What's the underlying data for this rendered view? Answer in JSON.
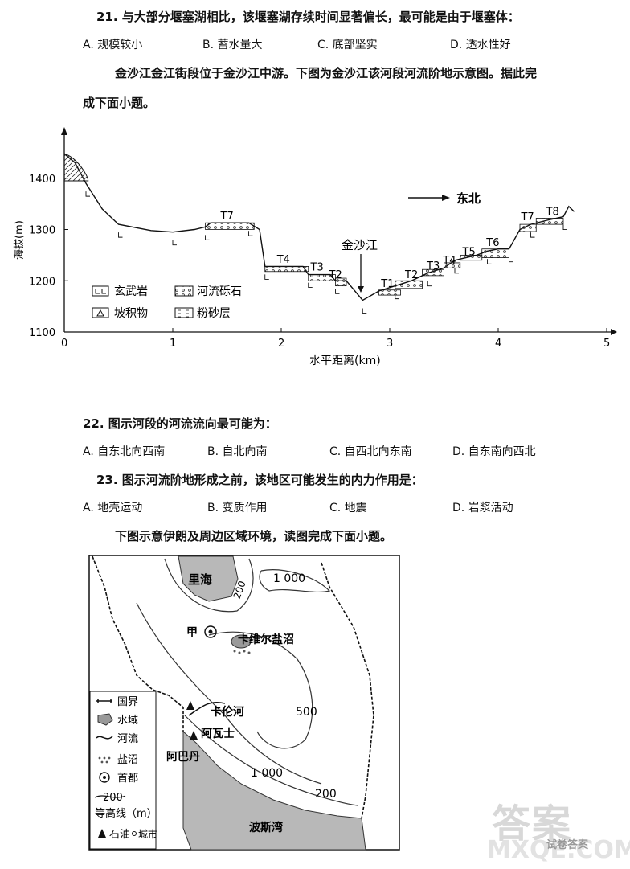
{
  "q21": {
    "title": "21. 与大部分堰塞湖相比，该堰塞湖存续时间显著偏长，最可能是由于堰塞体：",
    "options": [
      "A. 规模较小",
      "B. 蓄水量大",
      "C. 底部坚实",
      "D. 透水性好"
    ]
  },
  "intro1": {
    "line1": "金沙江金江街段位于金沙江中游。下图为金沙江该河段河流阶地示意图。据此完",
    "line2": "成下面小题。"
  },
  "chart_data": {
    "type": "area",
    "title": "",
    "xlabel": "水平距离(km)",
    "ylabel": "海拔(m)",
    "xlim": [
      0,
      5
    ],
    "ylim": [
      1100,
      1500
    ],
    "xticks": [
      "0",
      "1",
      "2",
      "3",
      "4",
      "5"
    ],
    "yticks": [
      "1100",
      "1200",
      "1300",
      "1400"
    ],
    "profile": {
      "x": [
        0,
        0.1,
        0.2,
        0.35,
        0.5,
        0.8,
        1.0,
        1.2,
        1.3,
        1.35,
        1.7,
        1.8,
        1.85,
        2.2,
        2.25,
        2.45,
        2.5,
        2.6,
        2.75,
        2.9,
        3.05,
        3.2,
        3.35,
        3.5,
        3.6,
        3.8,
        3.9,
        4.0,
        4.1,
        4.2,
        4.3,
        4.45,
        4.6,
        4.65,
        4.7
      ],
      "y": [
        1448,
        1430,
        1390,
        1340,
        1310,
        1298,
        1295,
        1300,
        1305,
        1313,
        1313,
        1300,
        1228,
        1228,
        1212,
        1212,
        1200,
        1200,
        1162,
        1180,
        1190,
        1200,
        1215,
        1225,
        1240,
        1250,
        1258,
        1262,
        1262,
        1300,
        1310,
        1318,
        1325,
        1345,
        1335
      ]
    },
    "terraces": [
      "T7",
      "T4",
      "T3",
      "T2",
      "T1",
      "T2",
      "T3",
      "T4",
      "T5",
      "T6",
      "T7",
      "T8"
    ],
    "river_label": "金沙江",
    "direction_label": "东北",
    "legend": [
      "玄武岩",
      "河流砾石",
      "坡积物",
      "粉砂层"
    ]
  },
  "q22": {
    "title": "22. 图示河段的河流流向最可能为：",
    "options": [
      "A. 自东北向西南",
      "B. 自北向南",
      "C. 自西北向东南",
      "D. 自东南向西北"
    ]
  },
  "q23": {
    "title": "23. 图示河流阶地形成之前，该地区可能发生的内力作用是：",
    "options": [
      "A. 地壳运动",
      "B. 变质作用",
      "C. 地震",
      "D. 岩浆活动"
    ]
  },
  "intro2": "下图示意伊朗及周边区域环境，读图完成下面小题。",
  "map": {
    "labels": {
      "caspian": "里海",
      "c1000_top": "1 000",
      "c200_top": "200",
      "capital": "甲",
      "salt": "卡维尔盐沼",
      "karun": "卡伦河",
      "ahvaz": "阿瓦士",
      "abadan": "阿巴丹",
      "c500": "500",
      "c1000_bottom": "1 000",
      "c200_bottom": "200",
      "gulf": "波斯湾"
    },
    "legend": {
      "border": "国界",
      "water": "水域",
      "river": "河流",
      "salt_marsh": "盐沼",
      "capital": "首都",
      "contour_value": "200",
      "contour": "等高线（m）",
      "oil": "石油",
      "city": "城市"
    }
  },
  "watermark": {
    "big": "答案",
    "small": "试卷答案",
    "site": "MXQE.COM"
  }
}
